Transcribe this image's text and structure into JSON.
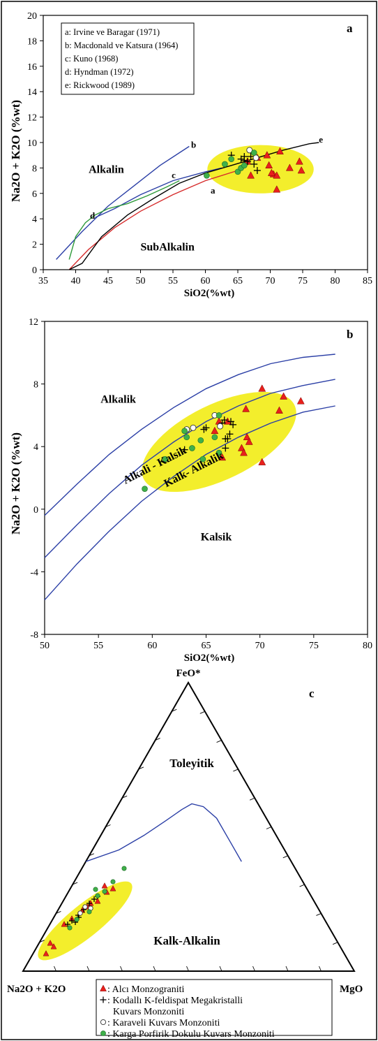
{
  "colors": {
    "highlight": "#f3ee2c",
    "triangle_marker": "#e8201c",
    "circle_green": "#3fb04a",
    "curve_blue": "#2b3fa6",
    "curve_red": "#d62b2b",
    "curve_green": "#2e9a3a",
    "curve_black": "#000000"
  },
  "legend": {
    "items": [
      {
        "marker": "triangle",
        "text": ": Alcı Monzograniti"
      },
      {
        "marker": "plus",
        "text": ": Kodallı K-feldispat Megakristalli"
      },
      {
        "marker": "none",
        "text": "Kuvars Monzoniti"
      },
      {
        "marker": "open-circle",
        "text": ": Karaveli Kuvars Monzoniti"
      },
      {
        "marker": "green-circle",
        "text": ": Karga Porfirik Dokulu Kuvars Monzoniti"
      }
    ]
  },
  "chart_data": [
    {
      "type": "scatter",
      "panel_label": "a",
      "xlabel": "SiO2(%wt)",
      "ylabel": "Na2O + K2O (%wt)",
      "xlim": [
        35,
        85
      ],
      "ylim": [
        0,
        20
      ],
      "xticks": [
        35,
        40,
        45,
        50,
        55,
        60,
        65,
        70,
        75,
        80,
        85
      ],
      "yticks": [
        0,
        2,
        4,
        6,
        8,
        10,
        12,
        14,
        16,
        18,
        20
      ],
      "legend_entries": [
        "a: Irvine ve Baragar (1971)",
        "b: Macdonald ve Katsura (1964)",
        "c: Kuno (1968)",
        "d: Hyndman (1972)",
        "e: Rickwood (1989)"
      ],
      "field_labels": [
        {
          "text": "Alkalin",
          "x": 42,
          "y": 7.6
        },
        {
          "text": "SubAlkalin",
          "x": 50,
          "y": 1.5
        }
      ],
      "curve_labels": [
        {
          "text": "a",
          "x": 60.8,
          "y": 6.0
        },
        {
          "text": "b",
          "x": 57.8,
          "y": 9.6
        },
        {
          "text": "c",
          "x": 54.8,
          "y": 7.2
        },
        {
          "text": "d",
          "x": 42.2,
          "y": 4.0
        },
        {
          "text": "e",
          "x": 77.5,
          "y": 10.0
        }
      ],
      "curves": [
        {
          "id": "a",
          "color": "#d62b2b",
          "x": [
            39.0,
            42.0,
            46.0,
            50.0,
            55.0,
            60.0,
            65.0,
            66.0
          ],
          "y": [
            0.0,
            1.6,
            3.3,
            4.6,
            5.9,
            7.0,
            7.8,
            8.0
          ]
        },
        {
          "id": "b",
          "color": "#2b3fa6",
          "x": [
            37.0,
            41.0,
            45.0,
            49.0,
            53.0,
            57.5
          ],
          "y": [
            0.8,
            3.0,
            5.0,
            6.6,
            8.2,
            9.7
          ]
        },
        {
          "id": "c",
          "color": "#2b3fa6",
          "x": [
            43.0,
            46.0,
            50.0,
            55.0,
            60.0,
            62.5
          ],
          "y": [
            4.1,
            4.8,
            5.9,
            7.0,
            7.7,
            8.0
          ]
        },
        {
          "id": "d",
          "color": "#2e9a3a",
          "x": [
            39.0,
            40.0,
            41.5,
            43.0,
            45.0,
            48.0,
            51.0,
            54.0,
            56.0
          ],
          "y": [
            0.8,
            2.6,
            3.7,
            4.3,
            4.8,
            5.2,
            5.8,
            6.5,
            7.0
          ]
        },
        {
          "id": "e",
          "color": "#000000",
          "x": [
            39.0,
            41.0,
            44.0,
            48.0,
            52.0,
            56.0,
            60.0,
            64.0,
            68.0,
            72.0,
            76.0,
            77.5
          ],
          "y": [
            0.0,
            0.5,
            2.6,
            4.3,
            5.6,
            6.8,
            7.6,
            8.2,
            8.8,
            9.4,
            9.9,
            10.0
          ]
        }
      ],
      "highlight_ellipse": {
        "cx": 68.5,
        "cy": 7.9,
        "rx": 8.2,
        "ry": 1.9
      },
      "series": [
        {
          "marker": "triangle",
          "x": [
            66.5,
            68.0,
            69.5,
            70.5,
            71.0,
            71.5,
            73.0,
            74.5,
            74.8,
            67.0,
            71.0,
            69.8,
            70.2
          ],
          "y": [
            8.5,
            8.8,
            9.0,
            7.5,
            7.4,
            9.3,
            8.0,
            8.5,
            7.8,
            7.4,
            6.3,
            8.2,
            7.6
          ]
        },
        {
          "marker": "plus",
          "x": [
            64.0,
            65.5,
            66.0,
            66.5,
            67.0,
            67.5,
            68.0,
            66.0
          ],
          "y": [
            9.0,
            8.7,
            8.9,
            8.5,
            8.9,
            8.3,
            7.8,
            8.6
          ]
        },
        {
          "marker": "open-circle",
          "x": [
            66.8,
            67.8
          ],
          "y": [
            9.4,
            8.8
          ]
        },
        {
          "marker": "green-circle",
          "x": [
            60.2,
            63.0,
            64.0,
            65.0,
            65.5,
            67.5,
            66.0
          ],
          "y": [
            7.4,
            8.3,
            8.7,
            7.7,
            8.0,
            9.2,
            8.2
          ]
        }
      ]
    },
    {
      "type": "scatter",
      "panel_label": "b",
      "xlabel": "SiO2(%wt)",
      "ylabel": "Na2O + K2O (%wt)",
      "xlim": [
        50,
        80
      ],
      "ylim": [
        -8,
        12
      ],
      "xticks": [
        50,
        55,
        60,
        65,
        70,
        75,
        80
      ],
      "yticks": [
        -8,
        -4,
        0,
        4,
        8,
        12
      ],
      "field_labels": [
        {
          "text": "Alkalik",
          "x": 55.2,
          "y": 6.8
        },
        {
          "text": "Alkali - Kalsik",
          "x": 57.5,
          "y": 1.6,
          "rotate": -27
        },
        {
          "text": "Kalk- Alkalik",
          "x": 61.3,
          "y": 1.4,
          "rotate": -27
        },
        {
          "text": "Kalsik",
          "x": 64.5,
          "y": -2.0
        }
      ],
      "curves": [
        {
          "id": "b1",
          "color": "#2b3fa6",
          "x": [
            50,
            53,
            56,
            59,
            62,
            65,
            68,
            71,
            74,
            77
          ],
          "y": [
            -0.4,
            1.6,
            3.5,
            5.1,
            6.5,
            7.7,
            8.6,
            9.3,
            9.7,
            9.9
          ]
        },
        {
          "id": "b2",
          "color": "#2b3fa6",
          "x": [
            50,
            53,
            56,
            59,
            62,
            65,
            68,
            71,
            74,
            77
          ],
          "y": [
            -3.1,
            -1.0,
            1.0,
            2.8,
            4.3,
            5.6,
            6.6,
            7.4,
            7.9,
            8.3
          ]
        },
        {
          "id": "b3",
          "color": "#2b3fa6",
          "x": [
            50,
            53,
            56,
            59,
            62,
            65,
            68,
            71,
            74,
            77
          ],
          "y": [
            -5.8,
            -3.5,
            -1.4,
            0.5,
            2.1,
            3.5,
            4.6,
            5.5,
            6.2,
            6.6
          ]
        }
      ],
      "highlight_ellipse": {
        "cx": 66.2,
        "cy": 4.3,
        "rx": 7.8,
        "ry": 2.4,
        "rotate": -26
      },
      "series": [
        {
          "marker": "triangle",
          "x": [
            65.8,
            66.5,
            67.0,
            68.7,
            68.8,
            69.0,
            70.2,
            70.2,
            71.8,
            72.2,
            73.8,
            68.3,
            68.5,
            66.2
          ],
          "y": [
            5.0,
            3.3,
            5.6,
            6.4,
            4.6,
            4.3,
            7.7,
            3.0,
            6.3,
            7.2,
            6.9,
            3.9,
            3.6,
            5.6
          ]
        },
        {
          "marker": "plus",
          "x": [
            63.0,
            64.8,
            65.0,
            66.5,
            66.8,
            67.0,
            67.3,
            67.5,
            66.8,
            66.7,
            67.2
          ],
          "y": [
            3.8,
            5.1,
            5.2,
            5.5,
            4.5,
            4.5,
            5.6,
            5.4,
            3.9,
            5.7,
            4.8
          ]
        },
        {
          "marker": "open-circle",
          "x": [
            63.2,
            63.8,
            65.8,
            66.3
          ],
          "y": [
            5.1,
            5.2,
            6.0,
            5.3
          ]
        },
        {
          "marker": "green-circle",
          "x": [
            59.3,
            61.2,
            63.0,
            63.2,
            63.7,
            64.5,
            64.7,
            65.8,
            66.2,
            66.2
          ],
          "y": [
            1.3,
            3.2,
            5.0,
            4.6,
            3.9,
            4.4,
            3.2,
            4.6,
            6.0,
            3.6
          ]
        }
      ]
    },
    {
      "type": "ternary",
      "panel_label": "c",
      "apex_labels": {
        "top": "FeO*",
        "left": "Na2O + K2O",
        "right": "MgO"
      },
      "field_labels": [
        {
          "text": "Toleyitik",
          "position": "upper"
        },
        {
          "text": "Kalk-Alkalin",
          "position": "lower"
        }
      ],
      "boundary_curve": {
        "color": "#2b3fa6",
        "components_FeO_Alk_MgO": [
          [
            0.38,
            0.62,
            0.0
          ],
          [
            0.42,
            0.5,
            0.08
          ],
          [
            0.47,
            0.4,
            0.13
          ],
          [
            0.52,
            0.31,
            0.17
          ],
          [
            0.56,
            0.24,
            0.2
          ],
          [
            0.58,
            0.2,
            0.22
          ],
          [
            0.57,
            0.17,
            0.26
          ],
          [
            0.53,
            0.15,
            0.32
          ],
          [
            0.45,
            0.15,
            0.4
          ],
          [
            0.38,
            0.15,
            0.47
          ]
        ]
      }
    }
  ]
}
